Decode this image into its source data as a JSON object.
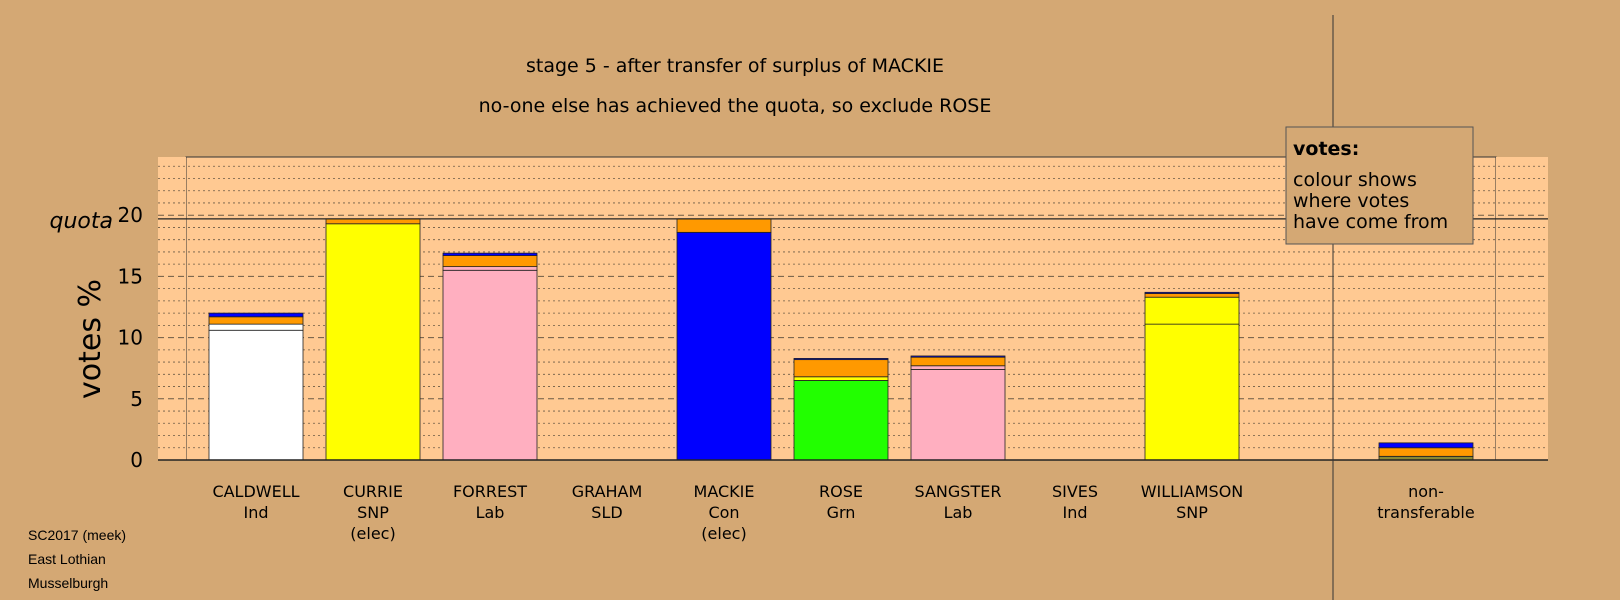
{
  "chart_data": {
    "type": "bar",
    "stacked": true,
    "title": "stage 5 - after transfer of surplus of MACKIE",
    "subtitle": "no-one else has achieved the quota, so exclude ROSE",
    "ylabel": "votes %",
    "quota_label": "quota",
    "quota": 19.7,
    "ylim": [
      0,
      25
    ],
    "yticks": [
      "0",
      "5",
      "10",
      "15",
      "20"
    ],
    "grid": true,
    "categories": [
      {
        "name": "CALDWELL",
        "party": "Ind",
        "note": ""
      },
      {
        "name": "CURRIE",
        "party": "SNP",
        "note": "(elec)"
      },
      {
        "name": "FORREST",
        "party": "Lab",
        "note": ""
      },
      {
        "name": "GRAHAM",
        "party": "SLD",
        "note": ""
      },
      {
        "name": "MACKIE",
        "party": "Con",
        "note": "(elec)"
      },
      {
        "name": "ROSE",
        "party": "Grn",
        "note": ""
      },
      {
        "name": "SANGSTER",
        "party": "Lab",
        "note": ""
      },
      {
        "name": "SIVES",
        "party": "Ind",
        "note": ""
      },
      {
        "name": "WILLIAMSON",
        "party": "SNP",
        "note": ""
      }
    ],
    "bars": [
      {
        "segments": [
          {
            "value": 10.6,
            "color": "#FFFFFF"
          },
          {
            "value": 0.5,
            "color": "#FFFFFF"
          },
          {
            "value": 0.6,
            "color": "#FF9900"
          },
          {
            "value": 0.3,
            "color": "#0000FF"
          }
        ]
      },
      {
        "segments": [
          {
            "value": 19.3,
            "color": "#FFFF00"
          },
          {
            "value": 0.4,
            "color": "#FF9900"
          }
        ]
      },
      {
        "segments": [
          {
            "value": 15.5,
            "color": "#FFAFC0"
          },
          {
            "value": 0.3,
            "color": "#FFAFC0"
          },
          {
            "value": 0.9,
            "color": "#FF9900"
          },
          {
            "value": 0.2,
            "color": "#0000FF"
          }
        ]
      },
      {
        "segments": []
      },
      {
        "segments": [
          {
            "value": 18.6,
            "color": "#0000FF"
          },
          {
            "value": 1.1,
            "color": "#FF9900"
          }
        ]
      },
      {
        "segments": [
          {
            "value": 6.5,
            "color": "#22FF00"
          },
          {
            "value": 0.3,
            "color": "#FFFF00"
          },
          {
            "value": 1.4,
            "color": "#FF9900"
          },
          {
            "value": 0.1,
            "color": "#0000FF"
          }
        ]
      },
      {
        "segments": [
          {
            "value": 7.4,
            "color": "#FFAFC0"
          },
          {
            "value": 0.3,
            "color": "#FFAFC0"
          },
          {
            "value": 0.7,
            "color": "#FF9900"
          },
          {
            "value": 0.1,
            "color": "#0000FF"
          }
        ]
      },
      {
        "segments": []
      },
      {
        "segments": [
          {
            "value": 11.1,
            "color": "#FFFF00"
          },
          {
            "value": 2.2,
            "color": "#FFFF00"
          },
          {
            "value": 0.3,
            "color": "#FF9900"
          },
          {
            "value": 0.1,
            "color": "#0000FF"
          }
        ]
      }
    ],
    "nontransferable": {
      "label_line1": "non-",
      "label_line2": "transferable",
      "segments": [
        {
          "value": 0.3,
          "color": "#888833"
        },
        {
          "value": 0.7,
          "color": "#FF9900"
        },
        {
          "value": 0.4,
          "color": "#0000FF"
        }
      ]
    },
    "legend": {
      "placement": "top-right",
      "title": "votes:",
      "lines": [
        "colour shows",
        "where votes",
        "have come from"
      ]
    }
  },
  "footer": {
    "line1": "SC2017 (meek)",
    "line2": "East Lothian",
    "line3": "Musselburgh"
  },
  "colors": {
    "background": "#D4A874",
    "plot_background": "#FFC992"
  }
}
